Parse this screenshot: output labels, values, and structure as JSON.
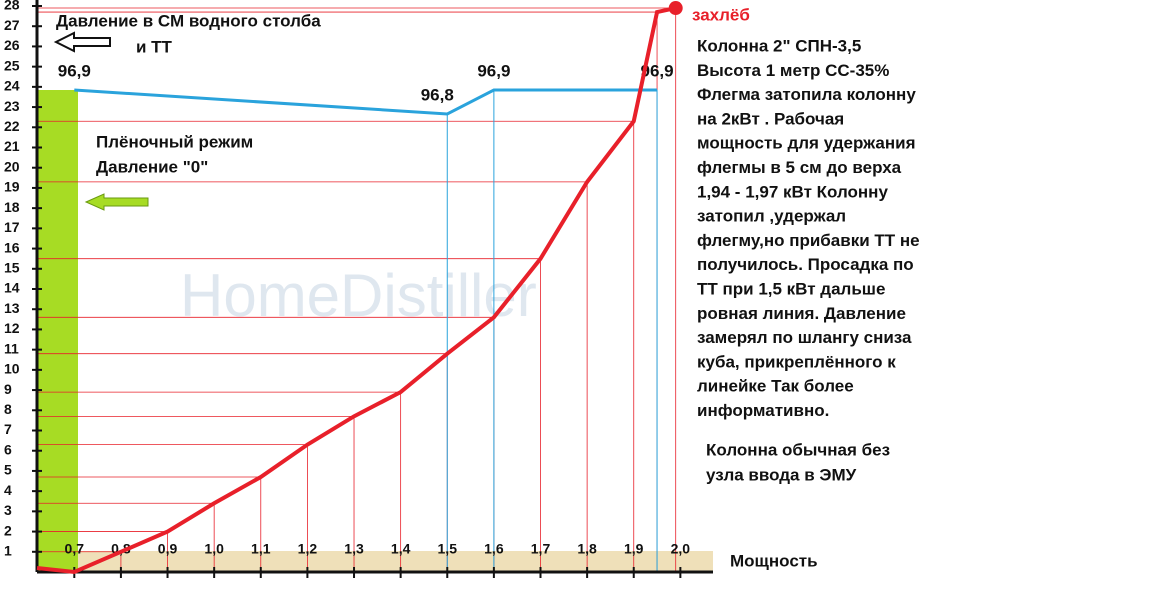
{
  "chart_data": {
    "type": "line",
    "title": "Давление в СМ водного столба",
    "subtitle": "и ТТ",
    "x_label": "Мощность",
    "watermark": "HomeDistiller",
    "zone_label": [
      "Плёночный режим",
      "Давление \"0\""
    ],
    "annotation": "захлёб",
    "notes": [
      "Колонна 2\" СПН-3,5",
      "Высота 1 метр СС-35%",
      " Флегма затопила колонну",
      "на 2кВт  . Рабочая",
      "мощность для удержания",
      "флегмы в 5 см до верха",
      "1,94  - 1,97 кВт  Колонну",
      "затопил ,удержал",
      "флегму,но прибавки ТТ не",
      "получилось. Просадка по",
      "ТТ при 1,5 кВт дальше",
      "ровная линия. Давление",
      "замерял по шлангу сниза",
      "куба, прикреплённого к",
      "линейке  Так более",
      "информативно."
    ],
    "notes2": [
      "Колонна обычная  без",
      "узла ввода в ЭМУ"
    ],
    "xlim": [
      0.62,
      2.07
    ],
    "ylim": [
      0,
      28
    ],
    "xticks": [
      {
        "value": 0.7,
        "label": "0,7"
      },
      {
        "value": 0.8,
        "label": "0,8"
      },
      {
        "value": 0.9,
        "label": "0,9"
      },
      {
        "value": 1.0,
        "label": "1,0"
      },
      {
        "value": 1.1,
        "label": "1,1"
      },
      {
        "value": 1.2,
        "label": "1,2"
      },
      {
        "value": 1.3,
        "label": "1,3"
      },
      {
        "value": 1.4,
        "label": "1,4"
      },
      {
        "value": 1.5,
        "label": "1,5"
      },
      {
        "value": 1.6,
        "label": "1,6"
      },
      {
        "value": 1.7,
        "label": "1,7"
      },
      {
        "value": 1.8,
        "label": "1,8"
      },
      {
        "value": 1.9,
        "label": "1,9"
      },
      {
        "value": 2.0,
        "label": "2,0"
      }
    ],
    "yticks": [
      1,
      2,
      3,
      4,
      5,
      6,
      7,
      8,
      9,
      10,
      11,
      12,
      13,
      14,
      15,
      16,
      17,
      18,
      19,
      20,
      21,
      22,
      23,
      24,
      25,
      26,
      27,
      28
    ],
    "series": [
      {
        "color": "#e8202a",
        "x": [
          0.62,
          0.7,
          0.8,
          0.9,
          1.0,
          1.1,
          1.2,
          1.3,
          1.4,
          1.5,
          1.6,
          1.7,
          1.8,
          1.9,
          1.95,
          1.99
        ],
        "values": [
          0.2,
          0,
          1,
          2,
          3.4,
          4.7,
          6.3,
          7.7,
          8.9,
          10.8,
          12.6,
          15.5,
          19.3,
          22.3,
          27.7,
          27.9
        ]
      },
      {
        "color": "#2aa3dc",
        "axis": "y2",
        "x": [
          0.7,
          1.5,
          1.6,
          1.95
        ],
        "values": [
          96.9,
          96.8,
          96.9,
          96.9
        ],
        "value_labels": [
          "96,9",
          "96,8",
          "96,9",
          "96,9"
        ]
      }
    ]
  }
}
